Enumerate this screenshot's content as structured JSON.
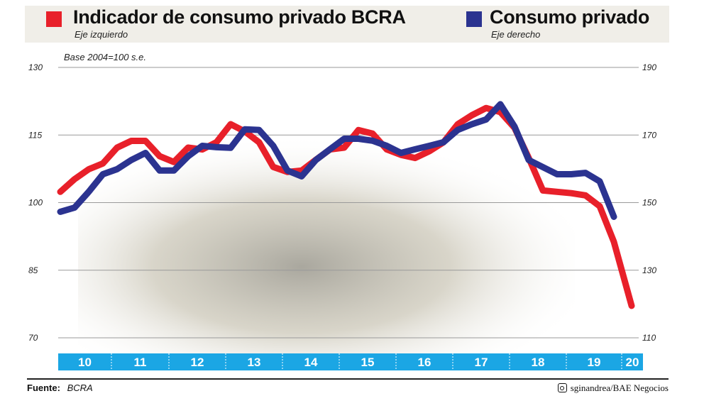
{
  "legend": [
    {
      "label": "Indicador de consumo privado BCRA",
      "sub": "Eje izquierdo",
      "color": "#e8202a"
    },
    {
      "label": "Consumo privado",
      "sub": "Eje derecho",
      "color": "#2b3390"
    }
  ],
  "note": "Base 2004=100 s.e.",
  "footer": {
    "source_label": "Fuente:",
    "source": "BCRA",
    "credit": "sginandrea/BAE Negocios",
    "credit_icon": "instagram-icon"
  },
  "chart_data": {
    "type": "line",
    "x_tick_labels": [
      "10",
      "11",
      "12",
      "13",
      "14",
      "15",
      "16",
      "17",
      "18",
      "19",
      "20"
    ],
    "x_frequency": "quarterly, 2010Q1–2020Q1",
    "y_left": {
      "ticks": [
        130,
        115,
        100,
        85,
        70
      ],
      "ylim": [
        70,
        130
      ]
    },
    "y_right": {
      "ticks": [
        190,
        170,
        150,
        130,
        110
      ],
      "ylim": [
        110,
        190
      ]
    },
    "grid": true,
    "legend_placement": "top",
    "series": [
      {
        "name": "Indicador de consumo privado BCRA",
        "axis": "left",
        "color": "#e8202a",
        "values": [
          102.4,
          105.2,
          107.4,
          108.7,
          112.2,
          113.7,
          113.7,
          110.3,
          109.0,
          112.2,
          111.8,
          113.4,
          117.4,
          115.8,
          113.4,
          107.9,
          106.8,
          107.1,
          109.5,
          111.8,
          112.2,
          116.1,
          115.3,
          111.8,
          110.6,
          109.9,
          111.4,
          113.4,
          117.4,
          119.4,
          121.0,
          120.1,
          116.6,
          109.9,
          102.7,
          102.4,
          102.1,
          101.6,
          99.2,
          91.3,
          77.1
        ]
      },
      {
        "name": "Consumo privado",
        "axis": "right",
        "color": "#2b3390",
        "values": [
          147.3,
          148.5,
          153.2,
          158.4,
          159.9,
          162.6,
          164.7,
          159.5,
          159.5,
          163.7,
          166.8,
          166.4,
          166.2,
          171.7,
          171.5,
          166.8,
          159.5,
          157.8,
          162.6,
          165.8,
          168.9,
          168.9,
          168.3,
          166.8,
          164.7,
          165.8,
          166.8,
          167.9,
          171.5,
          173.2,
          174.6,
          179.1,
          172.5,
          162.6,
          160.5,
          158.4,
          158.4,
          158.8,
          156.3,
          145.8
        ]
      }
    ]
  }
}
